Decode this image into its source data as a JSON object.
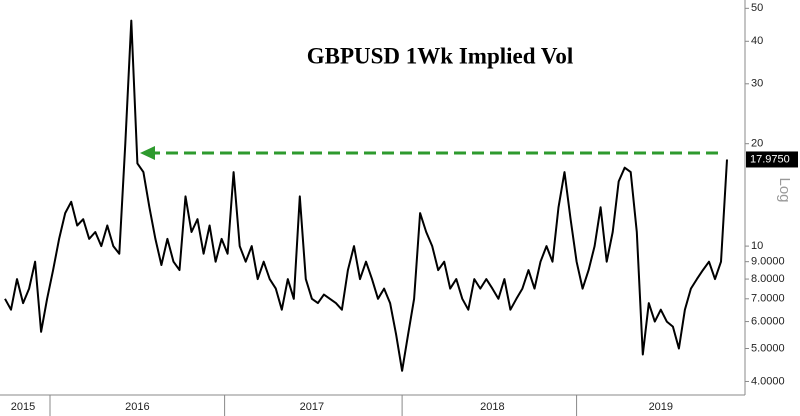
{
  "chart_data": {
    "type": "line",
    "title": "GBPUSD 1Wk Implied Vol",
    "y_axis_label": "Log",
    "log_scale": true,
    "categories": [
      null,
      null,
      null,
      "2015",
      null,
      null,
      null,
      null,
      null,
      null,
      null,
      null,
      null,
      null,
      null,
      null,
      null,
      null,
      null,
      null,
      null,
      null,
      "2016",
      null,
      null,
      null,
      null,
      null,
      null,
      null,
      null,
      null,
      null,
      null,
      null,
      null,
      null,
      null,
      null,
      null,
      null,
      null,
      null,
      null,
      null,
      null,
      null,
      null,
      null,
      null,
      null,
      "2017",
      null,
      null,
      null,
      null,
      null,
      null,
      null,
      null,
      null,
      null,
      null,
      null,
      null,
      null,
      null,
      null,
      null,
      null,
      null,
      null,
      null,
      null,
      null,
      null,
      null,
      null,
      null,
      null,
      null,
      "2018",
      null,
      null,
      null,
      null,
      null,
      null,
      null,
      null,
      null,
      null,
      null,
      null,
      null,
      null,
      null,
      null,
      null,
      null,
      null,
      null,
      null,
      null,
      null,
      null,
      null,
      null,
      null,
      "2019",
      null,
      null,
      null,
      null,
      null,
      null,
      null,
      null,
      null,
      null,
      null
    ],
    "series": [
      {
        "name": "GBPUSD 1Wk Implied Vol",
        "color": "#000000",
        "values": [
          7.0,
          6.5,
          8.0,
          6.8,
          7.5,
          9.0,
          5.6,
          7.0,
          8.5,
          10.5,
          12.5,
          13.5,
          11.5,
          12.0,
          10.5,
          11.0,
          10.0,
          11.5,
          10.0,
          9.5,
          20.0,
          46.0,
          17.5,
          16.5,
          13.0,
          10.5,
          8.8,
          10.5,
          9.0,
          8.5,
          14.0,
          11.0,
          12.0,
          9.5,
          11.5,
          9.0,
          10.5,
          9.5,
          16.5,
          10.0,
          9.0,
          10.0,
          8.0,
          9.0,
          8.0,
          7.5,
          6.5,
          8.0,
          7.0,
          14.0,
          8.0,
          7.0,
          6.8,
          7.2,
          7.0,
          6.8,
          6.5,
          8.5,
          10.0,
          8.0,
          9.0,
          8.0,
          7.0,
          7.5,
          6.8,
          5.5,
          4.3,
          5.5,
          7.0,
          12.5,
          11.0,
          10.0,
          8.5,
          9.0,
          7.5,
          8.0,
          7.0,
          6.5,
          8.0,
          7.5,
          8.0,
          7.5,
          7.0,
          8.0,
          6.5,
          7.0,
          7.5,
          8.5,
          7.5,
          9.0,
          10.0,
          9.0,
          13.0,
          16.5,
          12.0,
          9.0,
          7.5,
          8.5,
          10.0,
          13.0,
          9.0,
          11.0,
          15.5,
          17.0,
          16.5,
          11.0,
          4.8,
          6.8,
          6.0,
          6.5,
          6.0,
          5.8,
          5.0,
          6.5,
          7.5,
          8.0,
          8.5,
          9.0,
          8.0,
          9.0,
          17.975
        ]
      }
    ],
    "last_value": {
      "value": 17.975,
      "label": "17.9750"
    },
    "ylim": [
      3.65,
      52.9
    ],
    "yticks": [
      50,
      40,
      30,
      20,
      10,
      {
        "value": 9,
        "label": "9.0000"
      },
      {
        "value": 8,
        "label": "8.0000"
      },
      {
        "value": 7,
        "label": "7.0000"
      },
      {
        "value": 6,
        "label": "6.0000"
      },
      {
        "value": 5,
        "label": "5.0000"
      },
      {
        "value": 4,
        "label": "4.0000"
      }
    ],
    "grid": false
  }
}
